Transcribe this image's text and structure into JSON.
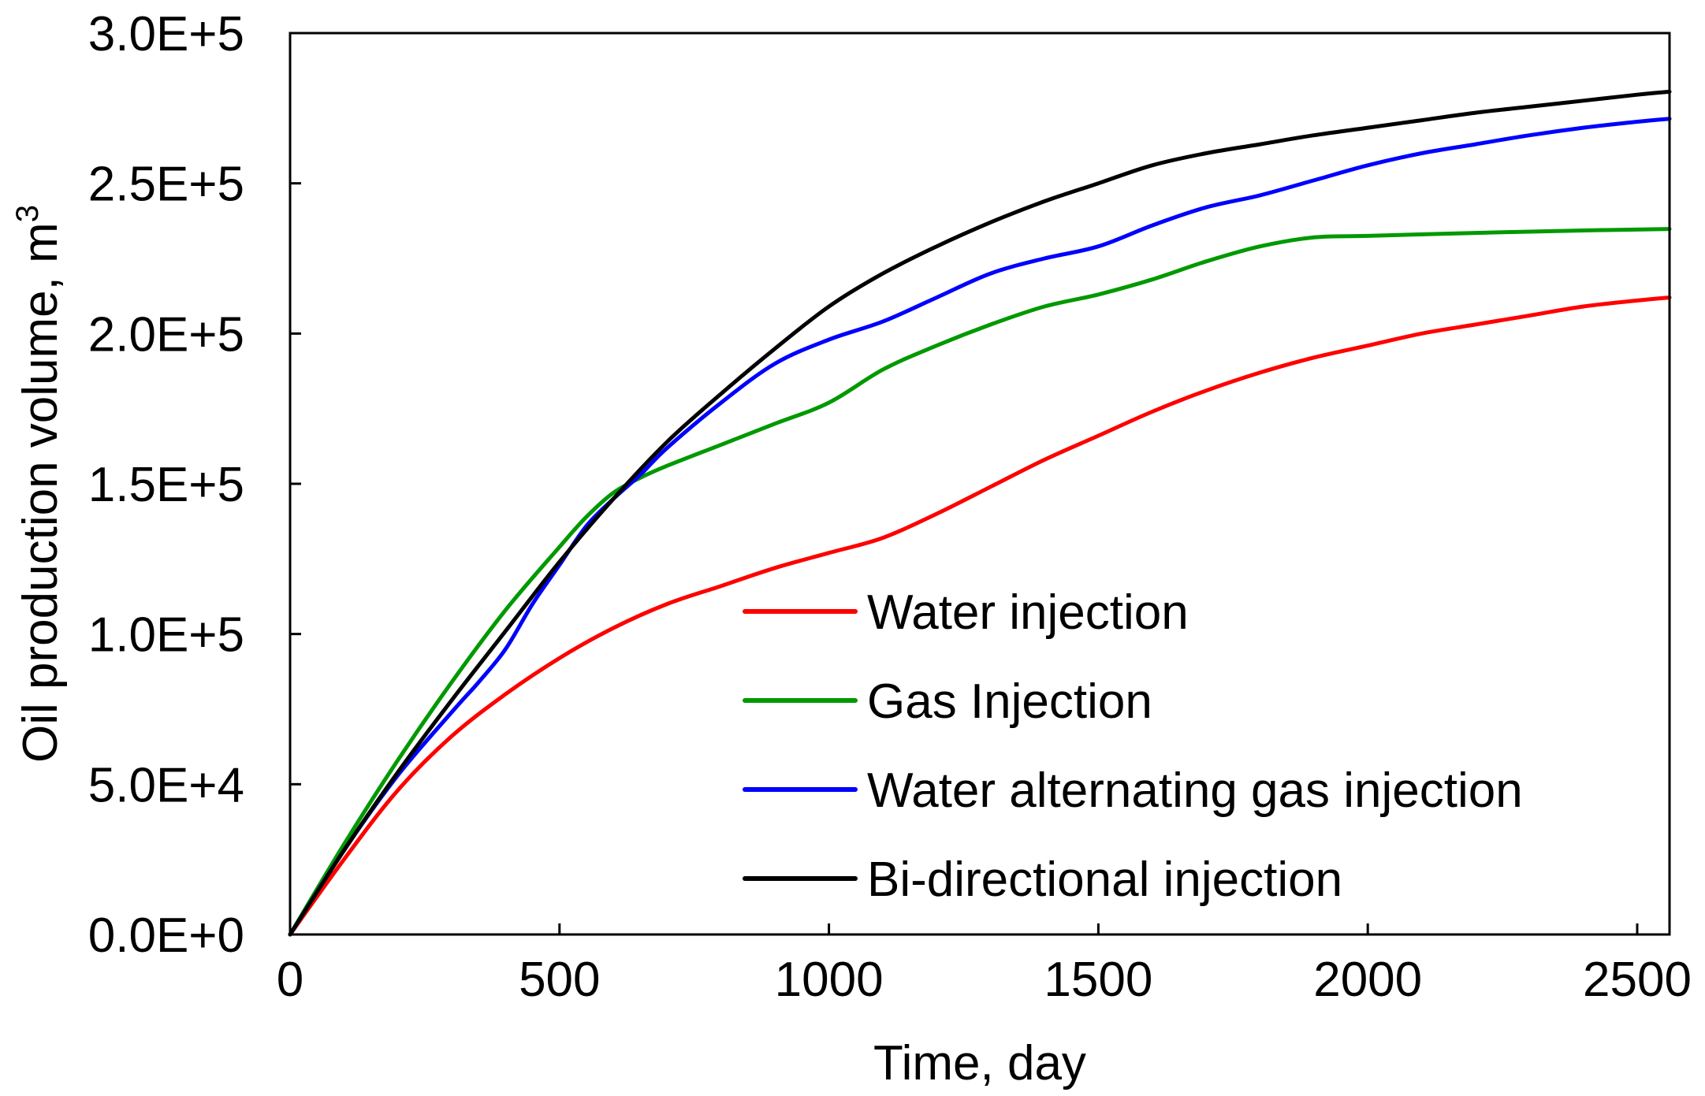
{
  "chart_data": {
    "type": "line",
    "title": "",
    "xlabel": "Time, day",
    "ylabel": "Oil production volume, m",
    "ylabel_sup": "3",
    "xlim": [
      0,
      2560
    ],
    "ylim": [
      0,
      300000
    ],
    "xticks": [
      0,
      500,
      1000,
      1500,
      2000,
      2500
    ],
    "xtick_labels": [
      "0",
      "500",
      "1000",
      "1500",
      "2000",
      "2500"
    ],
    "yticks": [
      0,
      50000,
      100000,
      150000,
      200000,
      250000,
      300000
    ],
    "ytick_labels": [
      "0.0E+0",
      "5.0E+4",
      "1.0E+5",
      "1.5E+5",
      "2.0E+5",
      "2.5E+5",
      "3.0E+5"
    ],
    "grid": false,
    "legend_position": "center-right",
    "series": [
      {
        "name": "Water injection",
        "color": "#ff0000",
        "x": [
          0,
          100,
          200,
          300,
          400,
          500,
          600,
          700,
          800,
          900,
          1000,
          1100,
          1200,
          1300,
          1400,
          1500,
          1600,
          1700,
          1800,
          1900,
          2000,
          2100,
          2200,
          2300,
          2400,
          2500,
          2560
        ],
        "values": [
          0,
          25000,
          48000,
          66000,
          80000,
          92000,
          102000,
          110000,
          116000,
          122000,
          127000,
          132000,
          140000,
          149000,
          158000,
          166000,
          174000,
          181000,
          187000,
          192000,
          196000,
          200000,
          203000,
          206000,
          209000,
          211000,
          212000
        ]
      },
      {
        "name": "Gas Injection",
        "color": "#009900",
        "x": [
          0,
          100,
          200,
          300,
          400,
          500,
          550,
          600,
          650,
          700,
          800,
          900,
          1000,
          1100,
          1200,
          1300,
          1400,
          1500,
          1600,
          1700,
          1800,
          1900,
          2000,
          2200,
          2400,
          2560
        ],
        "values": [
          0,
          30000,
          58000,
          84000,
          108000,
          129000,
          139000,
          147000,
          152000,
          156000,
          163000,
          170000,
          177000,
          188000,
          196000,
          203000,
          209000,
          213000,
          218000,
          224000,
          229000,
          232000,
          232500,
          233500,
          234300,
          234800
        ]
      },
      {
        "name": "Water alternating gas injection",
        "color": "#0000ff",
        "x": [
          0,
          100,
          200,
          300,
          350,
          400,
          450,
          500,
          550,
          600,
          650,
          700,
          800,
          900,
          1000,
          1100,
          1200,
          1300,
          1400,
          1500,
          1600,
          1700,
          1800,
          1900,
          2000,
          2100,
          2200,
          2300,
          2400,
          2500,
          2560
        ],
        "values": [
          0,
          28000,
          53000,
          74000,
          84000,
          95000,
          110000,
          123000,
          136000,
          145000,
          153000,
          162000,
          177000,
          190000,
          198000,
          204000,
          212000,
          220000,
          225000,
          229000,
          236000,
          242000,
          246000,
          251000,
          256000,
          260000,
          263000,
          266000,
          268500,
          270500,
          271500
        ]
      },
      {
        "name": "Bi-directional injection",
        "color": "#000000",
        "x": [
          0,
          100,
          200,
          300,
          400,
          500,
          600,
          700,
          800,
          900,
          1000,
          1100,
          1200,
          1300,
          1400,
          1500,
          1600,
          1700,
          1800,
          1900,
          2000,
          2100,
          2200,
          2300,
          2400,
          2500,
          2560
        ],
        "values": [
          0,
          28000,
          54000,
          78000,
          101000,
          124000,
          145000,
          164000,
          180000,
          195000,
          209000,
          220000,
          229000,
          237000,
          244000,
          250000,
          256000,
          260000,
          263000,
          266000,
          268500,
          271000,
          273500,
          275500,
          277500,
          279500,
          280500
        ]
      }
    ]
  }
}
